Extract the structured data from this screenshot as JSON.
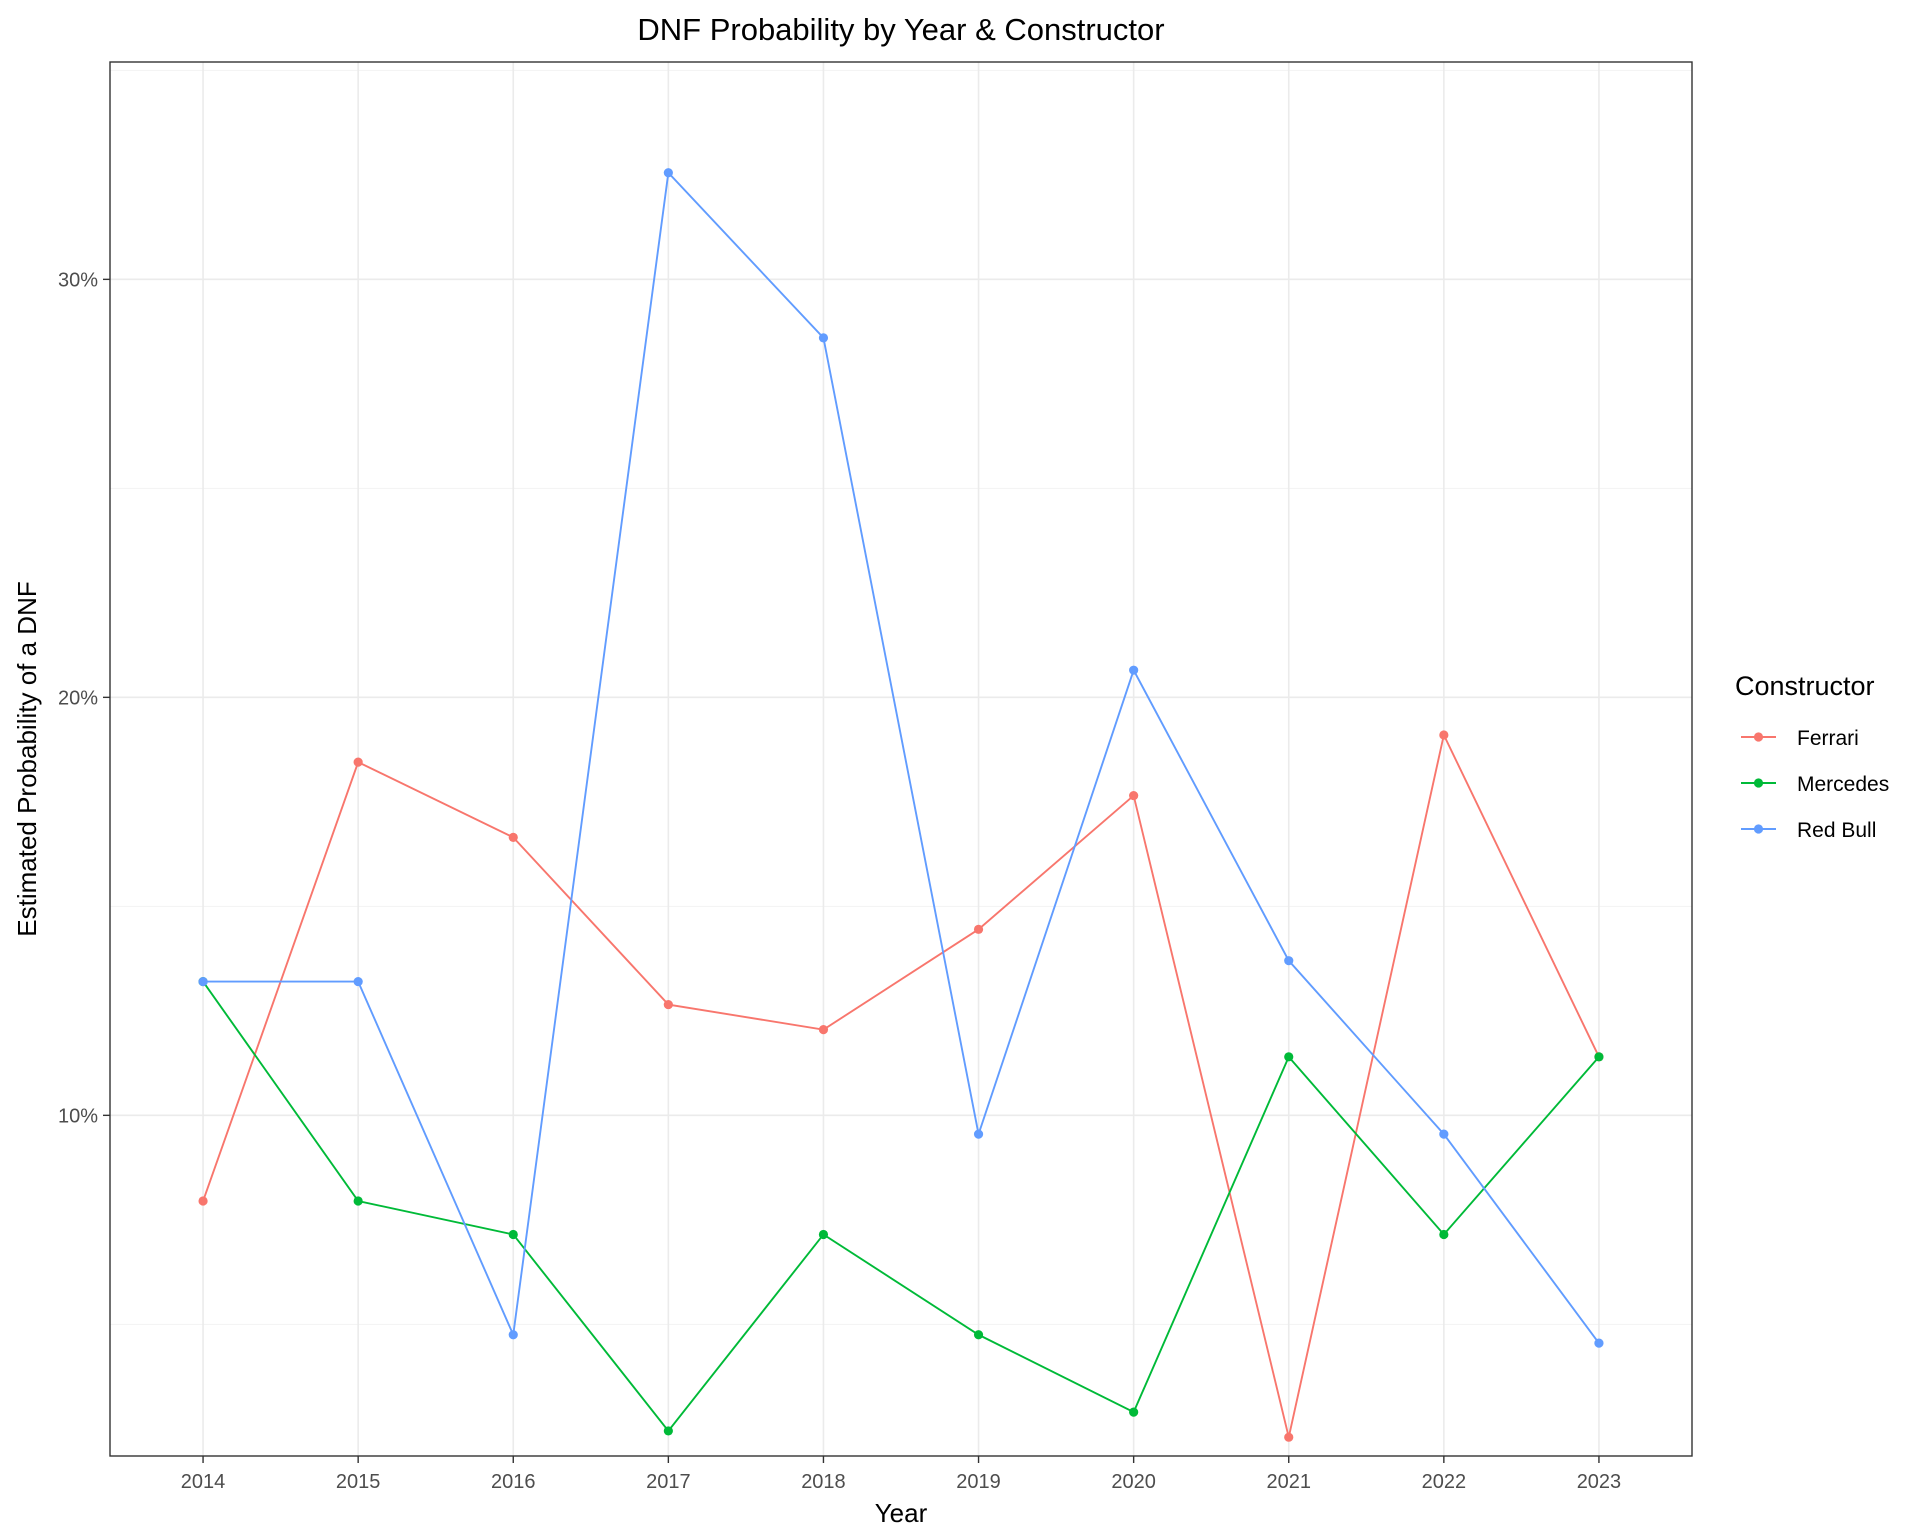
{
  "chart_data": {
    "type": "line",
    "title": "DNF Probability by Year & Constructor",
    "xlabel": "Year",
    "ylabel": "Estimated Probability of a DNF",
    "x": [
      2014,
      2015,
      2016,
      2017,
      2018,
      2019,
      2020,
      2021,
      2022,
      2023
    ],
    "xlim": [
      2013.4,
      2023.6
    ],
    "ylim": [
      0.0185,
      0.352
    ],
    "y_ticks": [
      0.1,
      0.2,
      0.3
    ],
    "y_tick_labels": [
      "10%",
      "20%",
      "30%"
    ],
    "x_tick_labels": [
      "2014",
      "2015",
      "2016",
      "2017",
      "2018",
      "2019",
      "2020",
      "2021",
      "2022",
      "2023"
    ],
    "grid": true,
    "legend": {
      "title": "Constructor",
      "position": "right"
    },
    "series": [
      {
        "name": "Ferrari",
        "color": "#F8766D",
        "values": [
          0.0795,
          0.1845,
          0.1665,
          0.1265,
          0.1205,
          0.1445,
          0.1765,
          0.023,
          0.191,
          0.114
        ]
      },
      {
        "name": "Mercedes",
        "color": "#00BA38",
        "values": [
          0.132,
          0.0795,
          0.0715,
          0.0245,
          0.0715,
          0.0475,
          0.029,
          0.114,
          0.0715,
          0.114
        ]
      },
      {
        "name": "Red Bull",
        "color": "#619CFF",
        "values": [
          0.132,
          0.132,
          0.0475,
          0.3255,
          0.286,
          0.0955,
          0.2065,
          0.137,
          0.0955,
          0.0455
        ]
      }
    ]
  }
}
